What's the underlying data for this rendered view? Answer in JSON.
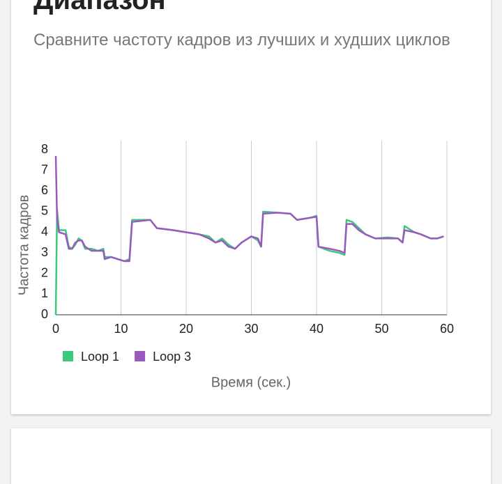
{
  "header": {
    "title": "Диапазон",
    "subtitle": "Сравните частоту кадров из лучших и худших циклов"
  },
  "chart_data": {
    "type": "line",
    "xlabel": "Время (сек.)",
    "ylabel": "Частота кадров",
    "x": [
      0,
      0.2,
      0.5,
      1.5,
      2,
      2.5,
      3,
      3.5,
      4,
      4.5,
      5.5,
      6.5,
      7.3,
      7.5,
      8.5,
      9.5,
      10.5,
      11.3,
      11.7,
      14.5,
      15.5,
      18,
      20,
      22,
      23.5,
      24.5,
      25.5,
      26.5,
      27.5,
      28.5,
      30,
      31,
      31.5,
      31.8,
      34,
      36,
      37,
      39,
      40,
      40.3,
      42,
      43.5,
      44.3,
      44.6,
      45.5,
      46.5,
      47.5,
      49,
      51,
      52.5,
      53.2,
      53.5,
      55,
      56,
      57.5,
      58.5,
      59.5
    ],
    "series": [
      {
        "name": "Loop 1",
        "color": "#3dc97c",
        "values": [
          0,
          5.1,
          4.1,
          4.1,
          3.3,
          3.2,
          3.4,
          3.7,
          3.6,
          3.2,
          3.2,
          3.1,
          3.2,
          2.8,
          2.8,
          2.7,
          2.6,
          2.7,
          4.6,
          4.6,
          4.2,
          4.1,
          4.0,
          3.9,
          3.8,
          3.5,
          3.7,
          3.4,
          3.2,
          3.5,
          3.8,
          3.6,
          3.3,
          5.0,
          4.95,
          4.9,
          4.6,
          4.7,
          4.8,
          3.3,
          3.1,
          3.0,
          2.9,
          4.6,
          4.5,
          4.2,
          3.9,
          3.7,
          3.75,
          3.7,
          3.5,
          4.3,
          4.0,
          3.9,
          3.7,
          3.7,
          3.8
        ]
      },
      {
        "name": "Loop 3",
        "color": "#9b59c0",
        "values": [
          7.7,
          4.6,
          4.0,
          3.9,
          3.2,
          3.2,
          3.5,
          3.6,
          3.6,
          3.3,
          3.1,
          3.1,
          3.1,
          2.7,
          2.8,
          2.7,
          2.6,
          2.6,
          4.5,
          4.6,
          4.2,
          4.1,
          4.0,
          3.9,
          3.7,
          3.5,
          3.6,
          3.3,
          3.2,
          3.5,
          3.8,
          3.7,
          3.3,
          4.9,
          4.95,
          4.9,
          4.6,
          4.7,
          4.75,
          3.3,
          3.2,
          3.1,
          3.0,
          4.4,
          4.4,
          4.1,
          3.9,
          3.7,
          3.7,
          3.7,
          3.5,
          4.1,
          4.0,
          3.9,
          3.7,
          3.7,
          3.8
        ]
      }
    ],
    "xlim": [
      0,
      60
    ],
    "xticks": [
      0,
      10,
      20,
      30,
      40,
      50,
      60
    ],
    "ylim": [
      0,
      8
    ],
    "yticks": [
      0,
      1,
      2,
      3,
      4,
      5,
      6,
      7,
      8
    ],
    "grid": true
  }
}
